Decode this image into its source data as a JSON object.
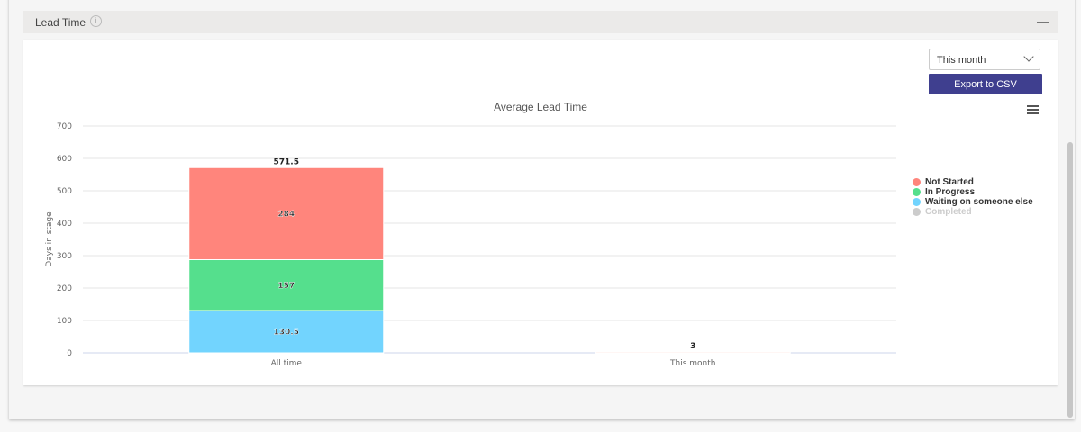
{
  "panel": {
    "title": "Lead Time",
    "info_icon": "info-icon",
    "collapse_icon": "minus-icon"
  },
  "controls": {
    "period_select": "This month",
    "export_label": "Export to CSV",
    "menu_icon": "hamburger-icon"
  },
  "chart_data": {
    "type": "bar",
    "stacked": true,
    "title": "Average Lead Time",
    "xlabel": "",
    "ylabel": "Days in stage",
    "ylim": [
      0,
      700
    ],
    "yticks": [
      0,
      100,
      200,
      300,
      400,
      500,
      600,
      700
    ],
    "grid": true,
    "legend_placement": "right",
    "categories": [
      "All time",
      "This month"
    ],
    "totals": [
      "571.5",
      "3"
    ],
    "series": [
      {
        "name": "Waiting on someone else",
        "color": "#72d4fe",
        "values": [
          130.5,
          0
        ],
        "labels": [
          "130.5",
          ""
        ]
      },
      {
        "name": "In Progress",
        "color": "#55df8d",
        "values": [
          157,
          0
        ],
        "labels": [
          "157",
          ""
        ]
      },
      {
        "name": "Not Started",
        "color": "#ff857c",
        "values": [
          284,
          3
        ],
        "labels": [
          "284",
          ""
        ]
      },
      {
        "name": "Completed",
        "color": "#cccccc",
        "values": [
          0,
          0
        ],
        "labels": [
          "",
          ""
        ],
        "hidden": true
      }
    ],
    "legend": [
      "Not Started",
      "In Progress",
      "Waiting on someone else",
      "Completed"
    ]
  }
}
